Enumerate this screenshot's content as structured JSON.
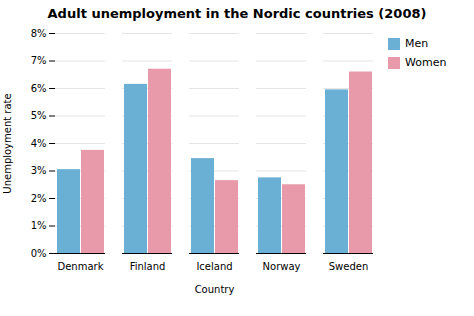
{
  "chart_data": {
    "type": "bar",
    "title": "Adult unemployment in the Nordic countries (2008)",
    "xlabel": "Country",
    "ylabel": "Unemployment rate",
    "categories": [
      "Denmark",
      "Finland",
      "Iceland",
      "Norway",
      "Sweden"
    ],
    "series": [
      {
        "name": "Men",
        "color": "#6ab0d4",
        "values": [
          3.05,
          6.15,
          3.45,
          2.75,
          5.95
        ]
      },
      {
        "name": "Women",
        "color": "#e89aaa",
        "values": [
          3.75,
          6.7,
          2.65,
          2.5,
          6.6
        ]
      }
    ],
    "ylim": [
      0,
      8
    ],
    "yticks": [
      {
        "value": 0,
        "label": "0%"
      },
      {
        "value": 1,
        "label": "1%"
      },
      {
        "value": 2,
        "label": "2%"
      },
      {
        "value": 3,
        "label": "3%"
      },
      {
        "value": 4,
        "label": "4%"
      },
      {
        "value": 5,
        "label": "5%"
      },
      {
        "value": 6,
        "label": "6%"
      },
      {
        "value": 7,
        "label": "7%"
      },
      {
        "value": 8,
        "label": "8%"
      }
    ],
    "grid": true,
    "legend": "right"
  }
}
